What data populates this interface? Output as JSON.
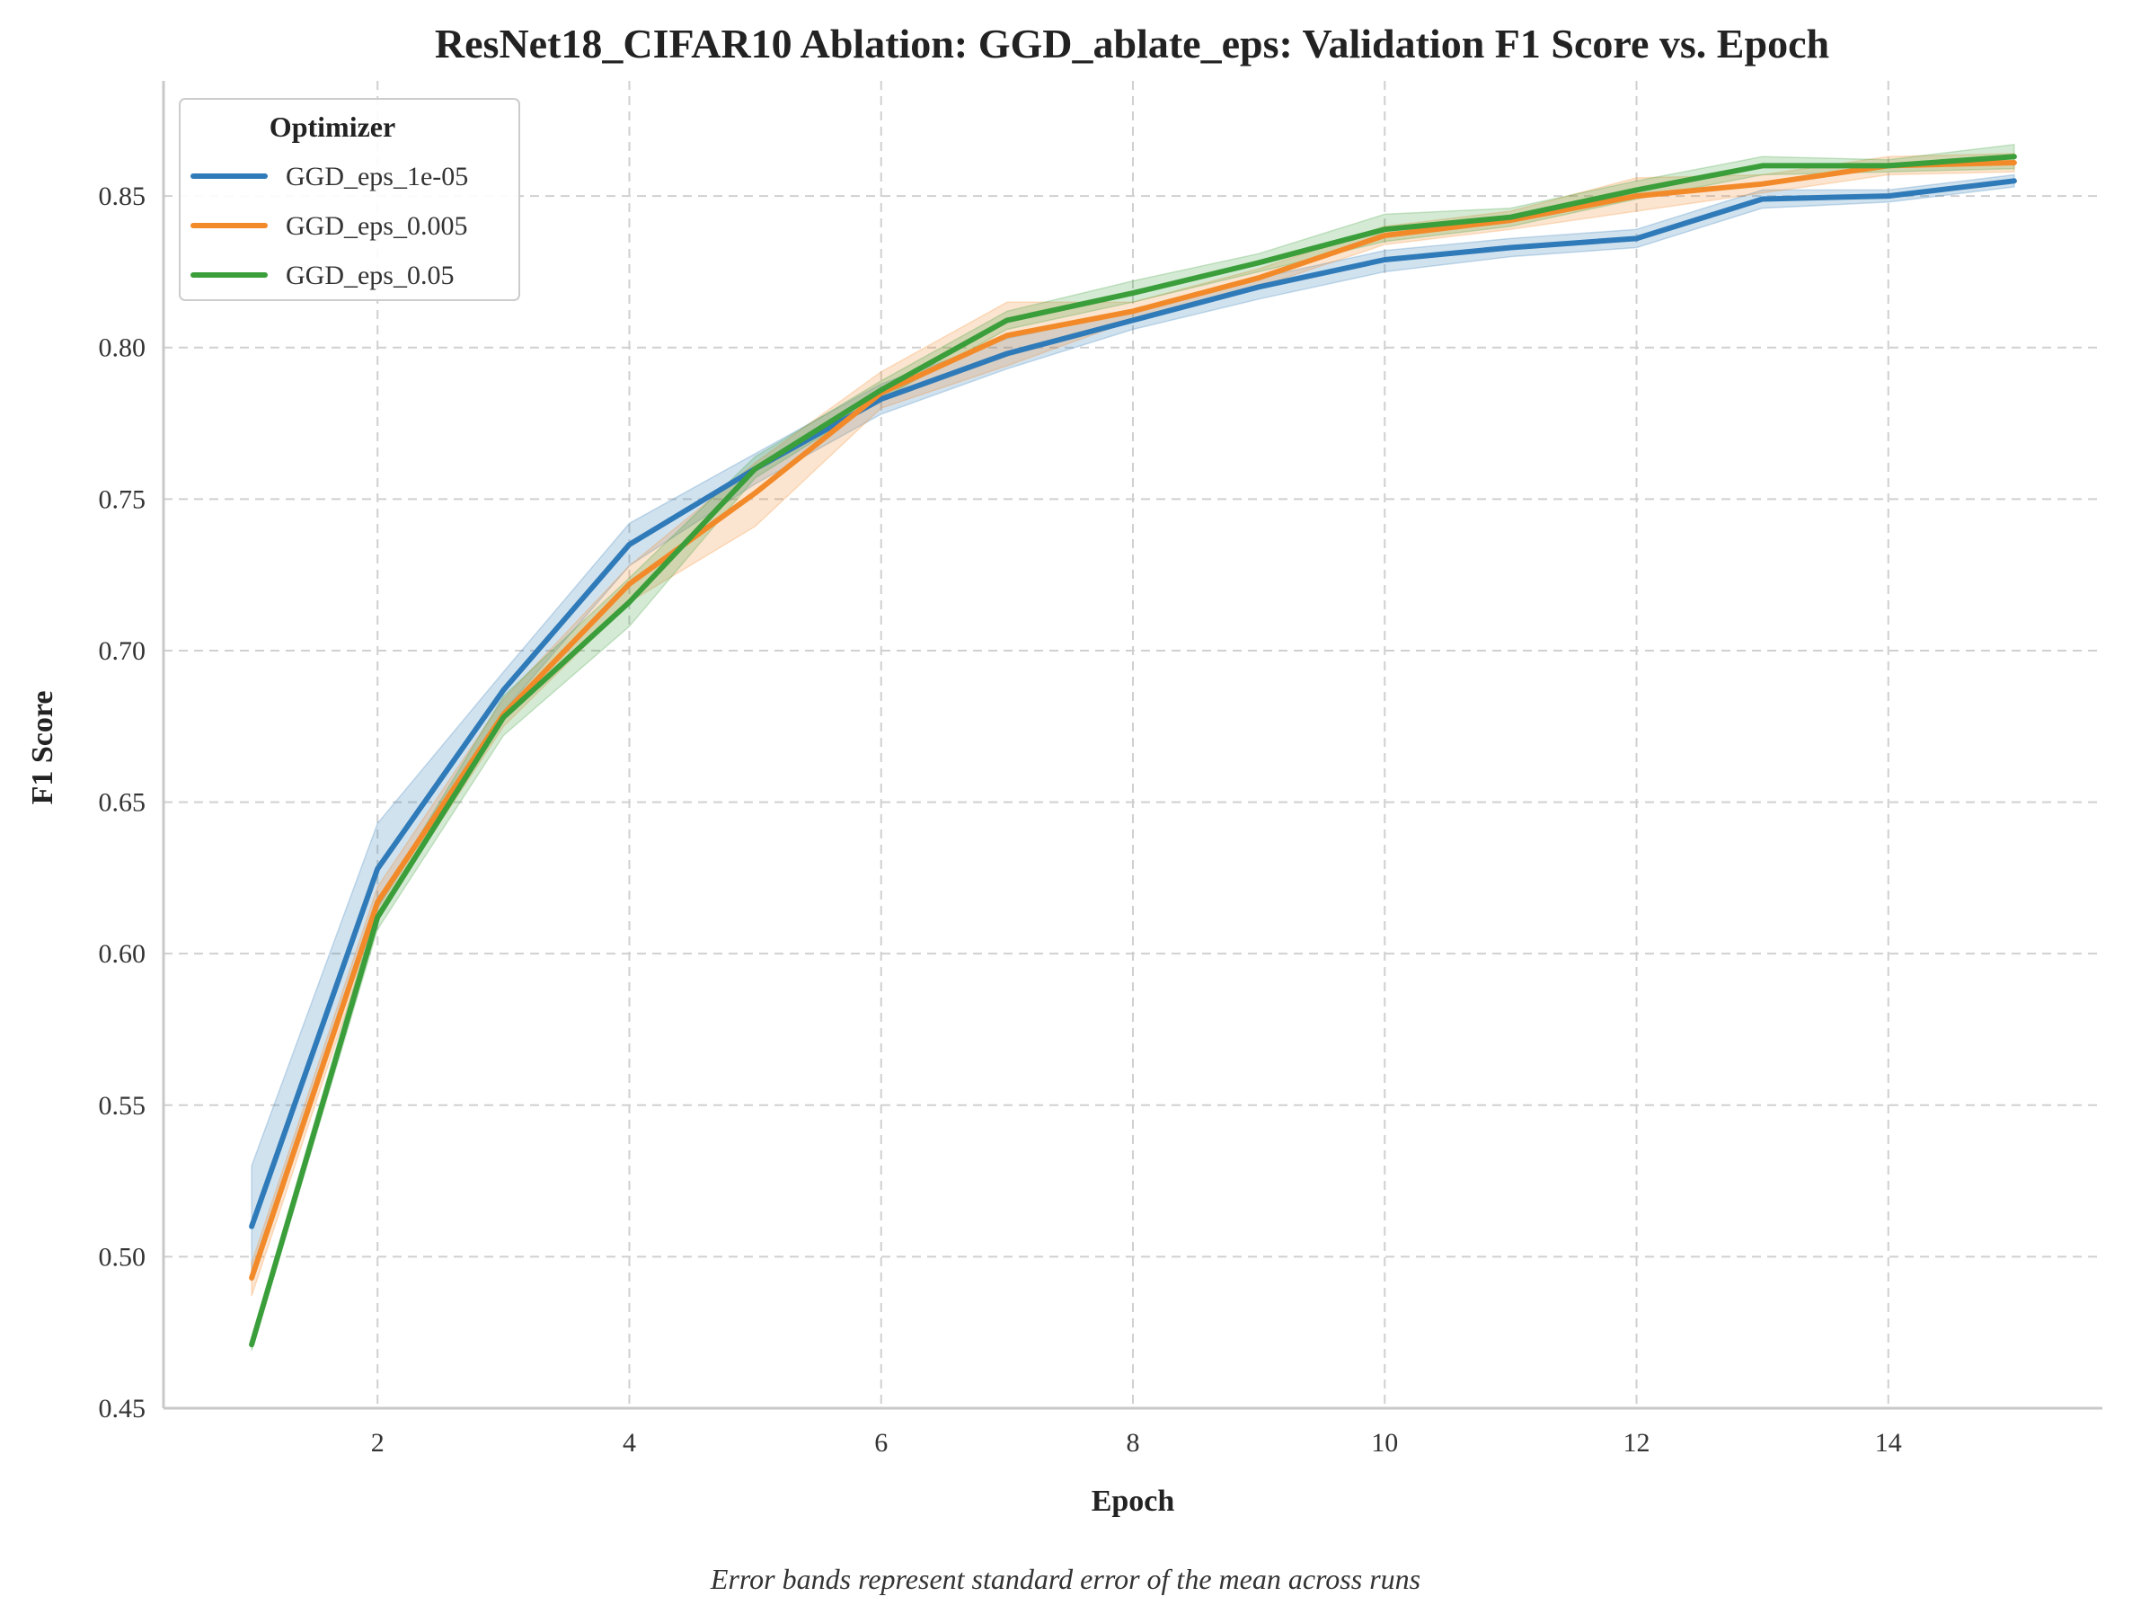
{
  "chart_data": {
    "type": "line",
    "title": "ResNet18_CIFAR10 Ablation: GGD_ablate_eps: Validation F1 Score vs. Epoch",
    "xlabel": "Epoch",
    "ylabel": "F1 Score",
    "caption": "Error bands represent standard error of the mean across runs",
    "xlim": [
      0.3,
      15.7
    ],
    "ylim": [
      0.45,
      0.888
    ],
    "xticks": [
      2,
      4,
      6,
      8,
      10,
      12,
      14
    ],
    "yticks": [
      0.45,
      0.5,
      0.55,
      0.6,
      0.65,
      0.7,
      0.75,
      0.8,
      0.85
    ],
    "ytick_labels": [
      "0.45",
      "0.50",
      "0.55",
      "0.60",
      "0.65",
      "0.70",
      "0.75",
      "0.80",
      "0.85"
    ],
    "grid": true,
    "legend": {
      "title": "Optimizer",
      "position": "top-left"
    },
    "x": [
      1,
      2,
      3,
      4,
      5,
      6,
      7,
      8,
      9,
      10,
      11,
      12,
      13,
      14,
      15
    ],
    "series": [
      {
        "name": "GGD_eps_1e-05",
        "color": "#2f7ab8",
        "values": [
          0.51,
          0.628,
          0.687,
          0.735,
          0.76,
          0.783,
          0.798,
          0.809,
          0.82,
          0.829,
          0.833,
          0.836,
          0.849,
          0.85,
          0.855
        ],
        "lower": [
          0.492,
          0.615,
          0.68,
          0.728,
          0.755,
          0.778,
          0.793,
          0.806,
          0.816,
          0.825,
          0.83,
          0.833,
          0.846,
          0.848,
          0.853
        ],
        "upper": [
          0.53,
          0.643,
          0.693,
          0.742,
          0.765,
          0.788,
          0.803,
          0.812,
          0.823,
          0.832,
          0.836,
          0.839,
          0.852,
          0.852,
          0.857
        ]
      },
      {
        "name": "GGD_eps_0.005",
        "color": "#f28a2a",
        "values": [
          0.493,
          0.617,
          0.679,
          0.722,
          0.752,
          0.785,
          0.804,
          0.812,
          0.823,
          0.837,
          0.842,
          0.85,
          0.854,
          0.86,
          0.861
        ],
        "lower": [
          0.487,
          0.612,
          0.675,
          0.716,
          0.741,
          0.78,
          0.794,
          0.809,
          0.82,
          0.834,
          0.839,
          0.845,
          0.851,
          0.857,
          0.858
        ],
        "upper": [
          0.498,
          0.622,
          0.684,
          0.728,
          0.762,
          0.792,
          0.815,
          0.815,
          0.826,
          0.84,
          0.845,
          0.856,
          0.857,
          0.863,
          0.864
        ]
      },
      {
        "name": "GGD_eps_0.05",
        "color": "#3a9e3a",
        "values": [
          0.471,
          0.612,
          0.678,
          0.716,
          0.76,
          0.786,
          0.809,
          0.818,
          0.828,
          0.839,
          0.843,
          0.852,
          0.86,
          0.86,
          0.863
        ],
        "lower": [
          0.469,
          0.608,
          0.672,
          0.708,
          0.757,
          0.783,
          0.806,
          0.815,
          0.825,
          0.835,
          0.84,
          0.849,
          0.857,
          0.858,
          0.859
        ],
        "upper": [
          0.473,
          0.616,
          0.685,
          0.724,
          0.764,
          0.789,
          0.812,
          0.822,
          0.831,
          0.844,
          0.846,
          0.855,
          0.863,
          0.862,
          0.867
        ]
      }
    ]
  }
}
